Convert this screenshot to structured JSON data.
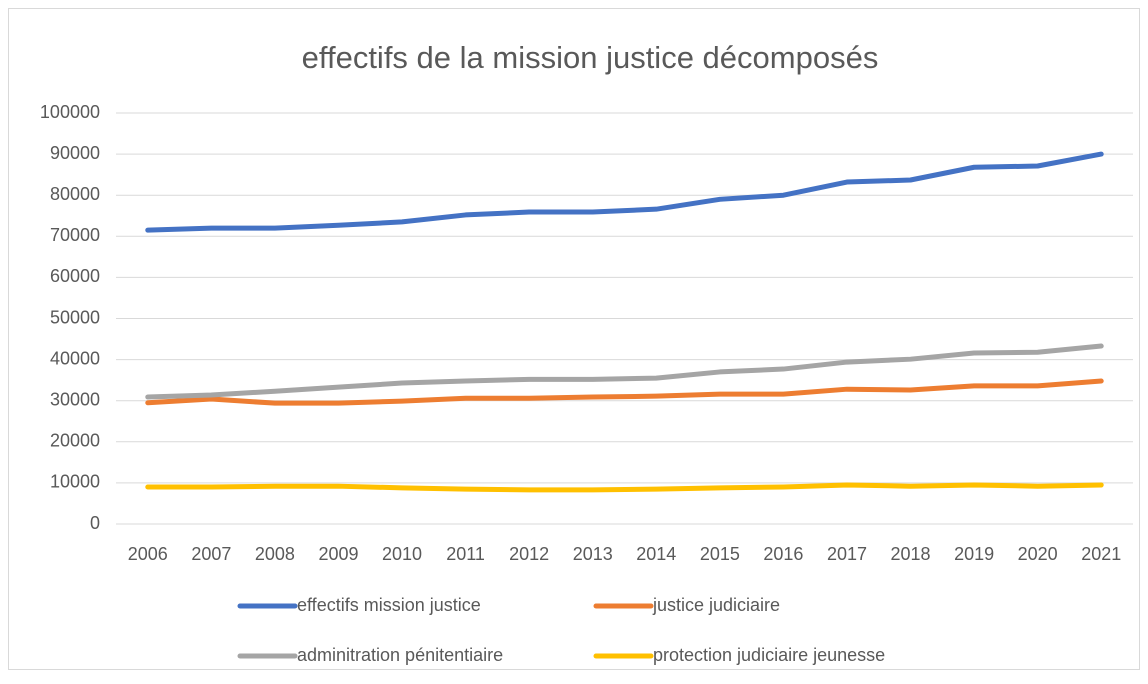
{
  "chart_data": {
    "type": "line",
    "title": "effectifs de la mission justice décomposés",
    "categories": [
      "2006",
      "2007",
      "2008",
      "2009",
      "2010",
      "2011",
      "2012",
      "2013",
      "2014",
      "2015",
      "2016",
      "2017",
      "2018",
      "2019",
      "2020",
      "2021"
    ],
    "series": [
      {
        "name": "effectifs mission justice",
        "color": "#4472c4",
        "values": [
          71500,
          72000,
          72000,
          72700,
          73500,
          75200,
          75900,
          75900,
          76600,
          79000,
          80000,
          83200,
          83700,
          86800,
          87100,
          90000
        ]
      },
      {
        "name": "justice judiciaire",
        "color": "#ed7d31",
        "values": [
          29500,
          30400,
          29400,
          29400,
          29900,
          30600,
          30600,
          30900,
          31100,
          31600,
          31600,
          32800,
          32600,
          33600,
          33600,
          34800
        ]
      },
      {
        "name": "adminitration pénitentiaire",
        "color": "#a5a5a5",
        "values": [
          30900,
          31400,
          32300,
          33300,
          34300,
          34800,
          35200,
          35200,
          35500,
          37000,
          37700,
          39400,
          40100,
          41600,
          41800,
          43300
        ]
      },
      {
        "name": "protection judiciaire jeunesse",
        "color": "#ffc000",
        "values": [
          9000,
          9000,
          9200,
          9200,
          8800,
          8500,
          8300,
          8300,
          8500,
          8800,
          9000,
          9500,
          9200,
          9500,
          9200,
          9500
        ]
      }
    ],
    "ylim": [
      0,
      100000
    ],
    "yticks": [
      0,
      10000,
      20000,
      30000,
      40000,
      50000,
      60000,
      70000,
      80000,
      90000,
      100000
    ],
    "grid": true,
    "legend": "bottom"
  }
}
